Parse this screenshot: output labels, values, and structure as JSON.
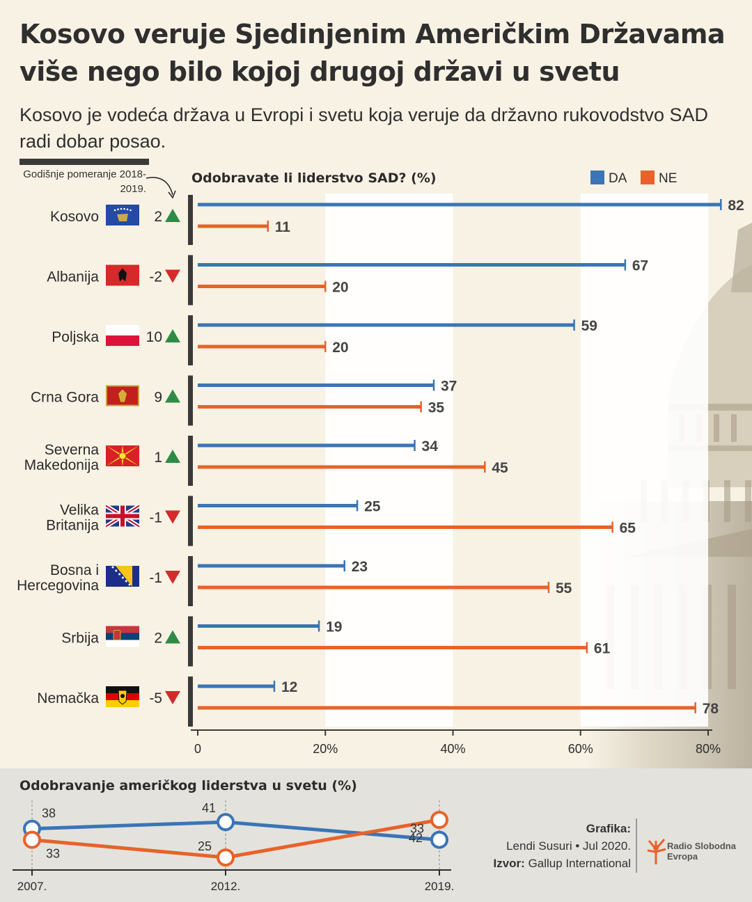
{
  "header": {
    "title": "Kosovo veruje Sjedinjenim Američkim Državama više nego bilo kojoj drugoj državi u svetu",
    "subtitle": "Kosovo je vodeća država u Evropi i svetu koja veruje da državno rukovodstvo SAD radi dobar posao."
  },
  "annual_change_note": "Godišnje pomeranje 2018-2019.",
  "colors": {
    "da": "#3a75b5",
    "ne": "#e8622a",
    "up": "#2e8b45",
    "down": "#d42a2a"
  },
  "chart_data": [
    {
      "type": "bar",
      "title": "Odobravate li liderstvo SAD? (%)",
      "legend": [
        "DA",
        "NE"
      ],
      "legend_position": "top-right",
      "categories": [
        "Kosovo",
        "Albanija",
        "Poljska",
        "Crna Gora",
        "Severna Makedonija",
        "Velika Britanija",
        "Bosna i Hercegovina",
        "Srbija",
        "Nemačka"
      ],
      "category_lines": [
        [
          "Kosovo"
        ],
        [
          "Albanija"
        ],
        [
          "Poljska"
        ],
        [
          "Crna Gora"
        ],
        [
          "Severna",
          "Makedonija"
        ],
        [
          "Velika",
          "Britanija"
        ],
        [
          "Bosna i",
          "Hercegovina"
        ],
        [
          "Srbija"
        ],
        [
          "Nemačka"
        ]
      ],
      "flags": [
        "kosovo-flag",
        "albania-flag",
        "poland-flag",
        "montenegro-flag",
        "north-macedonia-flag",
        "uk-flag",
        "bih-flag",
        "serbia-flag",
        "germany-flag"
      ],
      "series": [
        {
          "name": "DA",
          "values": [
            82,
            67,
            59,
            37,
            34,
            25,
            23,
            19,
            12
          ]
        },
        {
          "name": "NE",
          "values": [
            11,
            20,
            20,
            35,
            45,
            65,
            55,
            61,
            78
          ]
        }
      ],
      "change": [
        "2",
        "-2",
        "10",
        "9",
        "1",
        "-1",
        "-1",
        "2",
        "-5"
      ],
      "change_direction": [
        "up",
        "down",
        "up",
        "up",
        "up",
        "down",
        "down",
        "up",
        "down"
      ],
      "xlim": [
        0,
        80
      ],
      "xticks": [
        0,
        20,
        40,
        60,
        80
      ],
      "xtick_labels": [
        "0",
        "20%",
        "40%",
        "60%",
        "80%"
      ]
    },
    {
      "type": "line",
      "title": "Odobravanje američkog liderstva u svetu (%)",
      "x": [
        "2007.",
        "2012.",
        "2019."
      ],
      "series": [
        {
          "values": [
            38,
            41,
            33
          ]
        },
        {
          "values": [
            33,
            25,
            42
          ]
        }
      ]
    }
  ],
  "credits": {
    "graphics_label": "Grafika:",
    "graphics_value": "Lendi Susuri • Jul 2020.",
    "source_label": "Izvor:",
    "source_value": "Gallup International"
  },
  "logo_text": [
    "Radio Slobodna",
    "Evropa"
  ],
  "logo_icon": "rfe-logo-icon"
}
